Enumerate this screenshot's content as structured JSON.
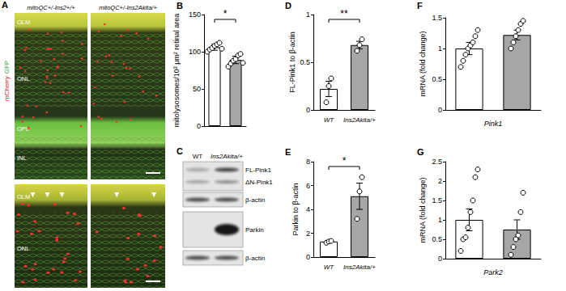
{
  "chart_data": [
    {
      "panel": "B",
      "type": "bar",
      "categories": [
        null,
        null
      ],
      "values": [
        106,
        89
      ],
      "errors": [
        4,
        5
      ],
      "points": [
        [
          100,
          103,
          105,
          108,
          110,
          112,
          104
        ],
        [
          80,
          84,
          88,
          90,
          95,
          97,
          85
        ]
      ],
      "colors": [
        "#ffffff",
        "#a6a6a6"
      ],
      "marker": "circle_open",
      "y_label": "mitolysosomes/10³ μm² retinal area",
      "ylim": [
        0,
        150
      ],
      "yticks": [
        0,
        50,
        100,
        150
      ],
      "annotation": "*",
      "grid": false
    },
    {
      "panel": "D",
      "type": "bar",
      "categories": [
        "WT",
        "Ins2Akita/+"
      ],
      "values": [
        0.22,
        0.68
      ],
      "errors": [
        0.08,
        0.04
      ],
      "points": [
        [
          0.08,
          0.25,
          0.33
        ],
        [
          0.62,
          0.68,
          0.74
        ]
      ],
      "colors": [
        "#ffffff",
        "#a6a6a6"
      ],
      "marker": "circle_open",
      "y_label": "FL-Pink1 to β-actin",
      "ylim": [
        0,
        1
      ],
      "yticks": [
        0,
        0.5,
        1
      ],
      "annotation": "**",
      "grid": false
    },
    {
      "panel": "E",
      "type": "bar",
      "categories": [
        "WT",
        "Ins2Akita/+"
      ],
      "values": [
        1.3,
        5.1
      ],
      "errors": [
        0.1,
        1.1
      ],
      "points": [
        [
          1.2,
          1.3,
          1.35
        ],
        [
          3.2,
          5.5,
          6.7
        ]
      ],
      "colors": [
        "#ffffff",
        "#a6a6a6"
      ],
      "marker": "circle_open",
      "y_label": "Parkin to β-actin",
      "ylim": [
        0,
        8
      ],
      "yticks": [
        0,
        2,
        4,
        6,
        8
      ],
      "annotation": "*",
      "grid": false
    },
    {
      "panel": "F",
      "type": "bar",
      "categories": [
        null,
        null
      ],
      "values": [
        1.0,
        1.22
      ],
      "errors": [
        0.1,
        0.08
      ],
      "points": [
        [
          0.7,
          0.8,
          0.9,
          1.0,
          1.05,
          1.1,
          1.2,
          1.3
        ],
        [
          1.0,
          1.1,
          1.2,
          1.3,
          1.4,
          1.45
        ]
      ],
      "colors": [
        "#ffffff",
        "#a6a6a6"
      ],
      "marker": "circle_open",
      "x_label": "Pink1",
      "y_label": "mRNA (fold change)",
      "ylim": [
        0,
        1.5
      ],
      "yticks": [
        0,
        0.5,
        1,
        1.5
      ],
      "grid": false
    },
    {
      "panel": "G",
      "type": "bar",
      "categories": [
        null,
        null
      ],
      "values": [
        1.0,
        0.75
      ],
      "errors": [
        0.28,
        0.25
      ],
      "points": [
        [
          0.2,
          0.5,
          0.55,
          0.8,
          1.2,
          1.5,
          2.1,
          2.3
        ],
        [
          0.1,
          0.3,
          0.5,
          0.6,
          1.2,
          1.7
        ]
      ],
      "colors": [
        "#ffffff",
        "#a6a6a6"
      ],
      "marker": "circle_open",
      "x_label": "Park2",
      "y_label": "mRNA (fold change)",
      "ylim": [
        0,
        2.5
      ],
      "yticks": [
        0,
        0.5,
        1,
        1.5,
        2,
        2.5
      ],
      "grid": false
    }
  ],
  "image_panels": {
    "A": {
      "panel": "A",
      "columns": [
        "mitoQC+/-Ins2+/+",
        "mitoQC+/-Ins2Akita/+"
      ],
      "channels": [
        "mCherry",
        "GFP"
      ],
      "layers_top": [
        "OLM",
        "ONL",
        "OPL",
        "INL"
      ],
      "layers_bottom": [
        "OLM",
        "ONL"
      ]
    },
    "C": {
      "panel": "C",
      "lanes": [
        "WT",
        "Ins2Akita/+"
      ],
      "bands": [
        "FL-Pink1",
        "ΔN-Pink1",
        "β-actin",
        "Parkin",
        "β-actin"
      ]
    }
  }
}
